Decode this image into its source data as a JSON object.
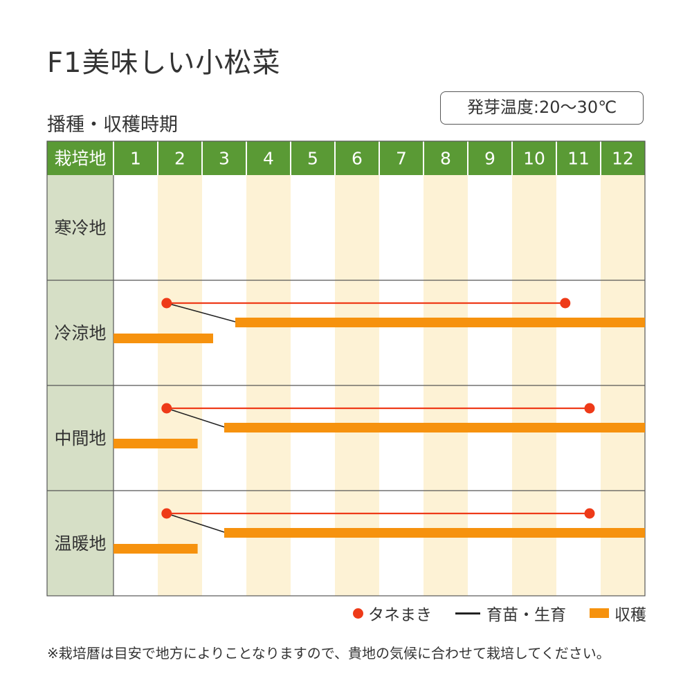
{
  "title": "F1美味しい小松菜",
  "subtitle": "播種・収穫時期",
  "temperature": "発芽温度:20〜30℃",
  "note": "※栽培暦は目安で地方によりことなりますので、貴地の気候に合わせて栽培してください。",
  "legend": {
    "sowing": "タネまき",
    "growing": "育苗・生育",
    "harvest": "収穫"
  },
  "colors": {
    "header_green": "#5a9a35",
    "region_cell": "#d6dfc6",
    "shaded_month": "#fdf2d5",
    "sowing_red": "#ee3a18",
    "harvest_orange": "#f6920e",
    "growth_line": "#222222"
  },
  "chart_data": {
    "type": "gantt-calendar",
    "header_label": "栽培地",
    "months": [
      "1",
      "2",
      "3",
      "4",
      "5",
      "6",
      "7",
      "8",
      "9",
      "10",
      "11",
      "12"
    ],
    "shaded_months": [
      2,
      4,
      6,
      8,
      10,
      12
    ],
    "regions": [
      {
        "name": "寒冷地",
        "sowing": null,
        "harvest": []
      },
      {
        "name": "冷涼地",
        "sowing": {
          "start": 2.2,
          "end": 11.2
        },
        "harvest": [
          {
            "start": 3.75,
            "end": 13.0
          },
          {
            "start": 1.0,
            "end": 3.25
          }
        ]
      },
      {
        "name": "中間地",
        "sowing": {
          "start": 2.2,
          "end": 11.75
        },
        "harvest": [
          {
            "start": 3.5,
            "end": 13.0
          },
          {
            "start": 1.0,
            "end": 2.9
          }
        ]
      },
      {
        "name": "温暖地",
        "sowing": {
          "start": 2.2,
          "end": 11.75
        },
        "harvest": [
          {
            "start": 3.5,
            "end": 13.0
          },
          {
            "start": 1.0,
            "end": 2.9
          }
        ]
      }
    ]
  }
}
